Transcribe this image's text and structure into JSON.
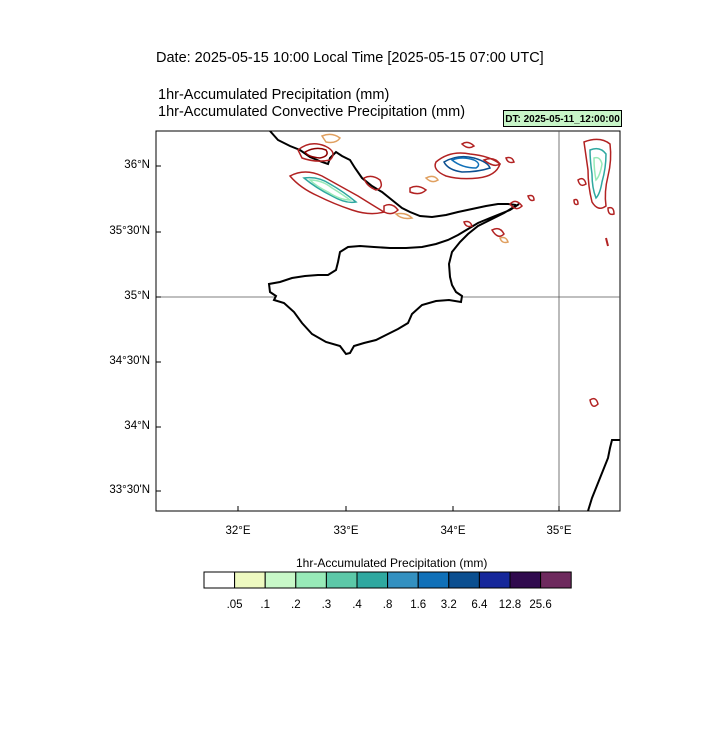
{
  "header": {
    "date_title": "Date: 2025-05-15  10:00 Local Time [2025-05-15  07:00 UTC]",
    "variable_1": "1hr-Accumulated Precipitation   (mm)",
    "variable_2": "1hr-Accumulated Convective Precipitation   (mm)",
    "dt_badge": "DT: 2025-05-11_12:00:00"
  },
  "map": {
    "lat_labels": [
      "36°N",
      "35°30'N",
      "35°N",
      "34°30'N",
      "34°N",
      "33°30'N"
    ],
    "lon_labels": [
      "32°E",
      "33°E",
      "34°E",
      "35°E"
    ],
    "grid_lines": {
      "latitude": "35°N",
      "longitude": "35°E"
    },
    "coastline_color": "#000000",
    "contour_color": "#b22222"
  },
  "colorbar": {
    "title": "1hr-Accumulated Precipitation  (mm)",
    "labels": [
      ".05",
      ".1",
      ".2",
      ".3",
      ".4",
      ".8",
      "1.6",
      "3.2",
      "6.4",
      "12.8",
      "25.6"
    ],
    "colors": [
      "#ffffff",
      "#eef9c0",
      "#c8f8c8",
      "#98eab8",
      "#5cc8a8",
      "#2fa8a0",
      "#3390c0",
      "#1070b8",
      "#0b4f90",
      "#16279a",
      "#300a4e",
      "#6e2a5e"
    ]
  }
}
